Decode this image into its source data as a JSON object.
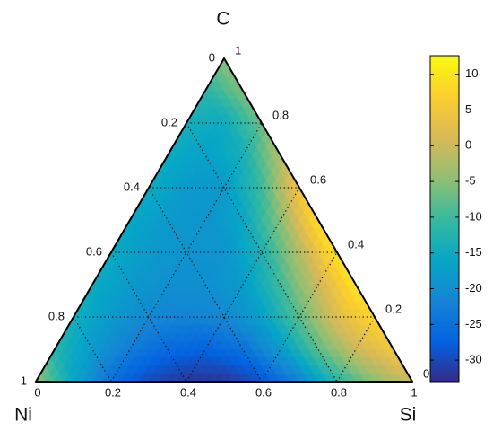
{
  "chart_data": {
    "type": "ternary",
    "c_label": "C",
    "ni_label": "Ni",
    "si_label": "Si",
    "c_ticks": [
      0,
      0.2,
      0.4,
      0.6,
      0.8,
      1
    ],
    "ni_ticks": [
      0,
      0.2,
      0.4,
      0.6,
      0.8,
      1
    ],
    "si_ticks": [
      0,
      0.2,
      0.4,
      0.6,
      0.8,
      1
    ],
    "grid": true,
    "field": {
      "c": [
        1,
        0.9,
        0.9,
        0.8,
        0.8,
        0.8,
        0.7,
        0.7,
        0.7,
        0.7,
        0.6,
        0.6,
        0.6,
        0.6,
        0.6,
        0.5,
        0.5,
        0.5,
        0.5,
        0.5,
        0.5,
        0.4,
        0.4,
        0.4,
        0.4,
        0.4,
        0.4,
        0.4,
        0.3,
        0.3,
        0.3,
        0.3,
        0.3,
        0.3,
        0.3,
        0.3,
        0.2,
        0.2,
        0.2,
        0.2,
        0.2,
        0.2,
        0.2,
        0.2,
        0.2,
        0.1,
        0.1,
        0.1,
        0.1,
        0.1,
        0.1,
        0.1,
        0.1,
        0.1,
        0.1,
        0,
        0,
        0,
        0,
        0,
        0,
        0,
        0,
        0,
        0,
        0
      ],
      "si": [
        0,
        0,
        0.1,
        0,
        0.1,
        0.2,
        0,
        0.1,
        0.2,
        0.3,
        0,
        0.1,
        0.2,
        0.3,
        0.4,
        0,
        0.1,
        0.2,
        0.3,
        0.4,
        0.5,
        0,
        0.1,
        0.2,
        0.3,
        0.4,
        0.5,
        0.6,
        0,
        0.1,
        0.2,
        0.3,
        0.4,
        0.5,
        0.6,
        0.7,
        0,
        0.1,
        0.2,
        0.3,
        0.4,
        0.5,
        0.6,
        0.7,
        0.8,
        0,
        0.1,
        0.2,
        0.3,
        0.4,
        0.5,
        0.6,
        0.7,
        0.8,
        0.9,
        0,
        0.1,
        0.2,
        0.3,
        0.4,
        0.5,
        0.6,
        0.7,
        0.8,
        0.9,
        1
      ],
      "values": [
        -5,
        -12,
        -6,
        -14,
        -15,
        -7,
        -15,
        -17,
        -14,
        -2,
        -15,
        -18,
        -18,
        -10,
        5,
        -16,
        -18,
        -19,
        -16,
        -5,
        9,
        -15,
        -18,
        -19,
        -19,
        -13,
        -2,
        10,
        -15,
        -18,
        -20,
        -20,
        -18,
        -10,
        0,
        10,
        -14,
        -18,
        -21,
        -22,
        -21,
        -17,
        -8,
        2,
        8,
        -12,
        -18,
        -23,
        -26,
        -27,
        -25,
        -18,
        -8,
        0,
        5,
        -4,
        -16,
        -25,
        -30,
        -32,
        -32,
        -29,
        -22,
        -12,
        -5,
        0
      ]
    },
    "clim": [
      -33,
      12.6
    ],
    "cticks": [
      10,
      5,
      0,
      -5,
      -10,
      -15,
      -20,
      -25,
      -30
    ],
    "colormap": [
      "#352a87",
      "#0363e1",
      "#1485d4",
      "#06a7c6",
      "#38b99e",
      "#92bf73",
      "#d9ba56",
      "#fcce2e",
      "#f9fb0e"
    ]
  }
}
